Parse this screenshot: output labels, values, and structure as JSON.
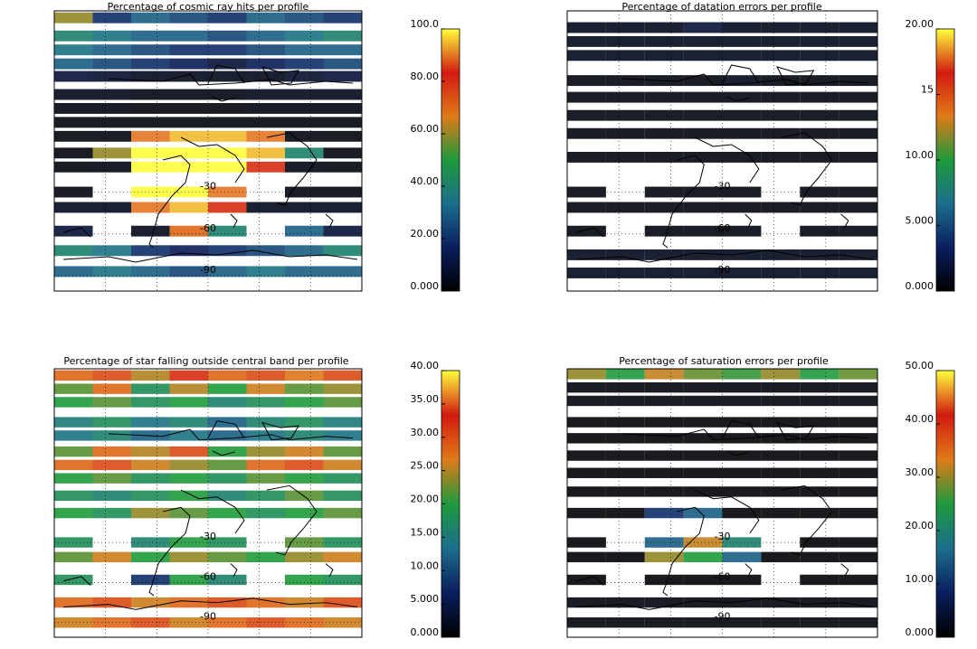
{
  "chart_data": [
    {
      "type": "map",
      "title": "Percentage of cosmic ray hits per profile",
      "ylim": [
        -101,
        100
      ],
      "lat_ticks": [
        -30,
        -60,
        -90
      ],
      "clim": [
        0,
        100
      ],
      "cticks": [
        {
          "value": 0,
          "label": "0.000"
        },
        {
          "value": 20,
          "label": "20.00"
        },
        {
          "value": 40,
          "label": "40.00"
        },
        {
          "value": 60,
          "label": "60.00"
        },
        {
          "value": 80,
          "label": "80.00"
        },
        {
          "value": 100,
          "label": "100.0"
        }
      ],
      "colormap": [
        "#000000",
        "#0b1e5e",
        "#1b6e8c",
        "#1e9a3c",
        "#e07a18",
        "#d21a10",
        "#ffff3c"
      ],
      "bands": [
        {
          "lat": 95,
          "values": [
            60,
            20,
            30,
            25,
            20,
            30,
            25,
            20
          ]
        },
        {
          "lat": 82,
          "values": [
            40,
            35,
            30,
            30,
            25,
            30,
            35,
            40
          ]
        },
        {
          "lat": 72,
          "values": [
            35,
            30,
            25,
            20,
            20,
            25,
            30,
            30
          ]
        },
        {
          "lat": 62,
          "values": [
            30,
            25,
            20,
            15,
            10,
            15,
            20,
            25
          ]
        },
        {
          "lat": 53,
          "values": [
            10,
            8,
            5,
            5,
            5,
            5,
            8,
            10
          ]
        },
        {
          "lat": 40,
          "values": [
            5,
            5,
            3,
            3,
            3,
            5,
            5,
            5
          ]
        },
        {
          "lat": 30,
          "values": [
            3,
            3,
            2,
            2,
            2,
            3,
            3,
            3
          ]
        },
        {
          "lat": 20,
          "values": [
            2,
            2,
            2,
            2,
            2,
            2,
            2,
            2
          ]
        },
        {
          "lat": 10,
          "values": [
            2,
            3,
            90,
            95,
            95,
            90,
            3,
            2
          ]
        },
        {
          "lat": -2,
          "values": [
            2,
            60,
            100,
            100,
            100,
            95,
            40,
            2
          ]
        },
        {
          "lat": -12,
          "values": [
            2,
            3,
            100,
            100,
            100,
            80,
            3,
            2
          ]
        },
        {
          "lat": -30,
          "values": [
            3,
            null,
            100,
            100,
            90,
            null,
            3,
            3
          ]
        },
        {
          "lat": -41,
          "values": [
            5,
            5,
            90,
            95,
            80,
            5,
            5,
            5
          ]
        },
        {
          "lat": -58,
          "values": [
            10,
            null,
            5,
            70,
            40,
            null,
            30,
            10
          ]
        },
        {
          "lat": -72,
          "values": [
            40,
            35,
            20,
            15,
            20,
            25,
            30,
            40
          ]
        },
        {
          "lat": -87,
          "values": [
            30,
            35,
            30,
            25,
            30,
            35,
            30,
            30
          ]
        }
      ]
    },
    {
      "type": "map",
      "title": "Percentage of datation errors per profile",
      "ylim": [
        -101,
        100
      ],
      "lat_ticks": [
        -30,
        -60,
        -90
      ],
      "clim": [
        0,
        20
      ],
      "cticks": [
        {
          "value": 0,
          "label": "0.000"
        },
        {
          "value": 5,
          "label": "5.000"
        },
        {
          "value": 10,
          "label": "10.00"
        },
        15,
        {
          "value": 20,
          "label": "20.00"
        }
      ],
      "colormap": [
        "#000000",
        "#0b1e5e",
        "#1b6e8c",
        "#1e9a3c",
        "#e07a18",
        "#d21a10",
        "#ffff3c"
      ],
      "bands": [
        {
          "lat": 88,
          "values": [
            1,
            1,
            1,
            2,
            1,
            1,
            1,
            1
          ]
        },
        {
          "lat": 78,
          "values": [
            1,
            1,
            1,
            1,
            1,
            1,
            1,
            1
          ]
        },
        {
          "lat": 68,
          "values": [
            1,
            1,
            1,
            1,
            1,
            1,
            1,
            1
          ]
        },
        {
          "lat": 50,
          "values": [
            0.5,
            0.5,
            0.5,
            0.5,
            1,
            0.5,
            0.5,
            0.5
          ]
        },
        {
          "lat": 38,
          "values": [
            0.5,
            0.5,
            0.5,
            0.5,
            0.5,
            0.5,
            0.5,
            0.5
          ]
        },
        {
          "lat": 25,
          "values": [
            0.5,
            0.5,
            0.5,
            0.5,
            0.5,
            0.5,
            0.5,
            0.5
          ]
        },
        {
          "lat": 12,
          "values": [
            0.5,
            0.5,
            0.5,
            0.5,
            0.5,
            0.5,
            0.5,
            0.5
          ]
        },
        {
          "lat": -5,
          "values": [
            0.5,
            0.5,
            0.5,
            0.5,
            0.5,
            0.5,
            0.5,
            0.5
          ]
        },
        {
          "lat": -30,
          "values": [
            0.5,
            null,
            0.5,
            0.5,
            0.5,
            null,
            0.5,
            0.5
          ]
        },
        {
          "lat": -41,
          "values": [
            0.5,
            0.5,
            0.5,
            0.5,
            0.5,
            0.5,
            0.5,
            0.5
          ]
        },
        {
          "lat": -58,
          "values": [
            0.5,
            null,
            0.5,
            0.5,
            0.5,
            null,
            0.5,
            0.5
          ]
        },
        {
          "lat": -75,
          "values": [
            1,
            1,
            1,
            1,
            1,
            1,
            1,
            1
          ]
        },
        {
          "lat": -88,
          "values": [
            1,
            1,
            1,
            1,
            1,
            1,
            1,
            1
          ]
        }
      ]
    },
    {
      "type": "map",
      "title": "Percentage of star falling outside central band per profile",
      "ylim": [
        -101,
        100
      ],
      "lat_ticks": [
        -30,
        -60,
        -90
      ],
      "clim": [
        0,
        40
      ],
      "cticks": [
        {
          "value": 0,
          "label": "0.000"
        },
        {
          "value": 5,
          "label": "5.000"
        },
        {
          "value": 10,
          "label": "10.00"
        },
        {
          "value": 15,
          "label": "15.00"
        },
        {
          "value": 20,
          "label": "20.00"
        },
        {
          "value": 25,
          "label": "25.00"
        },
        {
          "value": 30,
          "label": "30.00"
        },
        {
          "value": 35,
          "label": "35.00"
        },
        {
          "value": 40,
          "label": "40.00"
        }
      ],
      "colormap": [
        "#000000",
        "#0b1e5e",
        "#1b6e8c",
        "#1e9a3c",
        "#e07a18",
        "#d21a10",
        "#ffff3c"
      ],
      "bands": [
        {
          "lat": 95,
          "values": [
            28,
            30,
            25,
            32,
            28,
            30,
            27,
            30
          ]
        },
        {
          "lat": 85,
          "values": [
            22,
            28,
            18,
            25,
            20,
            26,
            22,
            24
          ]
        },
        {
          "lat": 75,
          "values": [
            20,
            22,
            18,
            20,
            16,
            18,
            20,
            22
          ]
        },
        {
          "lat": 60,
          "values": [
            15,
            18,
            14,
            16,
            12,
            16,
            18,
            15
          ]
        },
        {
          "lat": 50,
          "values": [
            14,
            16,
            12,
            14,
            12,
            14,
            16,
            14
          ]
        },
        {
          "lat": 38,
          "values": [
            22,
            28,
            25,
            30,
            20,
            24,
            26,
            22
          ]
        },
        {
          "lat": 28,
          "values": [
            28,
            30,
            26,
            24,
            22,
            28,
            30,
            26
          ]
        },
        {
          "lat": 18,
          "values": [
            20,
            22,
            18,
            20,
            18,
            22,
            20,
            18
          ]
        },
        {
          "lat": 5,
          "values": [
            18,
            16,
            18,
            20,
            16,
            18,
            22,
            18
          ]
        },
        {
          "lat": -8,
          "values": [
            20,
            18,
            24,
            22,
            20,
            18,
            20,
            22
          ]
        },
        {
          "lat": -30,
          "values": [
            18,
            null,
            16,
            20,
            18,
            null,
            22,
            18
          ]
        },
        {
          "lat": -41,
          "values": [
            22,
            26,
            20,
            24,
            22,
            20,
            24,
            26
          ]
        },
        {
          "lat": -58,
          "values": [
            18,
            null,
            8,
            20,
            16,
            null,
            20,
            18
          ]
        },
        {
          "lat": -75,
          "values": [
            28,
            30,
            26,
            28,
            30,
            28,
            26,
            30
          ]
        },
        {
          "lat": -90,
          "values": [
            26,
            28,
            30,
            26,
            28,
            30,
            28,
            26
          ]
        }
      ]
    },
    {
      "type": "map",
      "title": "Percentage of saturation errors per profile",
      "ylim": [
        -101,
        100
      ],
      "lat_ticks": [
        -30,
        -60,
        -90
      ],
      "clim": [
        0,
        50
      ],
      "cticks": [
        {
          "value": 0,
          "label": "0.000"
        },
        {
          "value": 10,
          "label": "10.00"
        },
        {
          "value": 20,
          "label": "20.00"
        },
        {
          "value": 30,
          "label": "30.00"
        },
        {
          "value": 40,
          "label": "40.00"
        },
        {
          "value": 50,
          "label": "50.00"
        }
      ],
      "colormap": [
        "#000000",
        "#0b1e5e",
        "#1b6e8c",
        "#1e9a3c",
        "#e07a18",
        "#d21a10",
        "#ffff3c"
      ],
      "bands": [
        {
          "lat": 96,
          "values": [
            30,
            25,
            32,
            28,
            26,
            30,
            25,
            28
          ]
        },
        {
          "lat": 86,
          "values": [
            1,
            1,
            1,
            1,
            1,
            1,
            1,
            1
          ]
        },
        {
          "lat": 76,
          "values": [
            1,
            1,
            1,
            1,
            1,
            1,
            1,
            1
          ]
        },
        {
          "lat": 60,
          "values": [
            0.5,
            0.5,
            0.5,
            0.5,
            0.5,
            0.5,
            0.5,
            0.5
          ]
        },
        {
          "lat": 48,
          "values": [
            0.5,
            0.5,
            0.5,
            0.5,
            0.5,
            0.5,
            0.5,
            0.5
          ]
        },
        {
          "lat": 35,
          "values": [
            0.5,
            0.5,
            0.5,
            0.5,
            0.5,
            0.5,
            0.5,
            0.5
          ]
        },
        {
          "lat": 22,
          "values": [
            0.5,
            0.5,
            0.5,
            0.5,
            0.5,
            0.5,
            0.5,
            0.5
          ]
        },
        {
          "lat": 8,
          "values": [
            0.5,
            0.5,
            0.5,
            0.5,
            0.5,
            0.5,
            0.5,
            0.5
          ]
        },
        {
          "lat": -8,
          "values": [
            0.5,
            0.5,
            10,
            15,
            0.5,
            0.5,
            0.5,
            0.5
          ]
        },
        {
          "lat": -30,
          "values": [
            0.5,
            null,
            15,
            32,
            20,
            null,
            0.5,
            0.5
          ]
        },
        {
          "lat": -41,
          "values": [
            0.5,
            0.5,
            30,
            25,
            15,
            0.5,
            0.5,
            0.5
          ]
        },
        {
          "lat": -58,
          "values": [
            0.5,
            null,
            0.5,
            0.5,
            0.5,
            null,
            0.5,
            0.5
          ]
        },
        {
          "lat": -75,
          "values": [
            1,
            1,
            1,
            1,
            1,
            1,
            1,
            1
          ]
        },
        {
          "lat": -90,
          "values": [
            1,
            1,
            1,
            1,
            1,
            1,
            1,
            1
          ]
        }
      ]
    }
  ]
}
